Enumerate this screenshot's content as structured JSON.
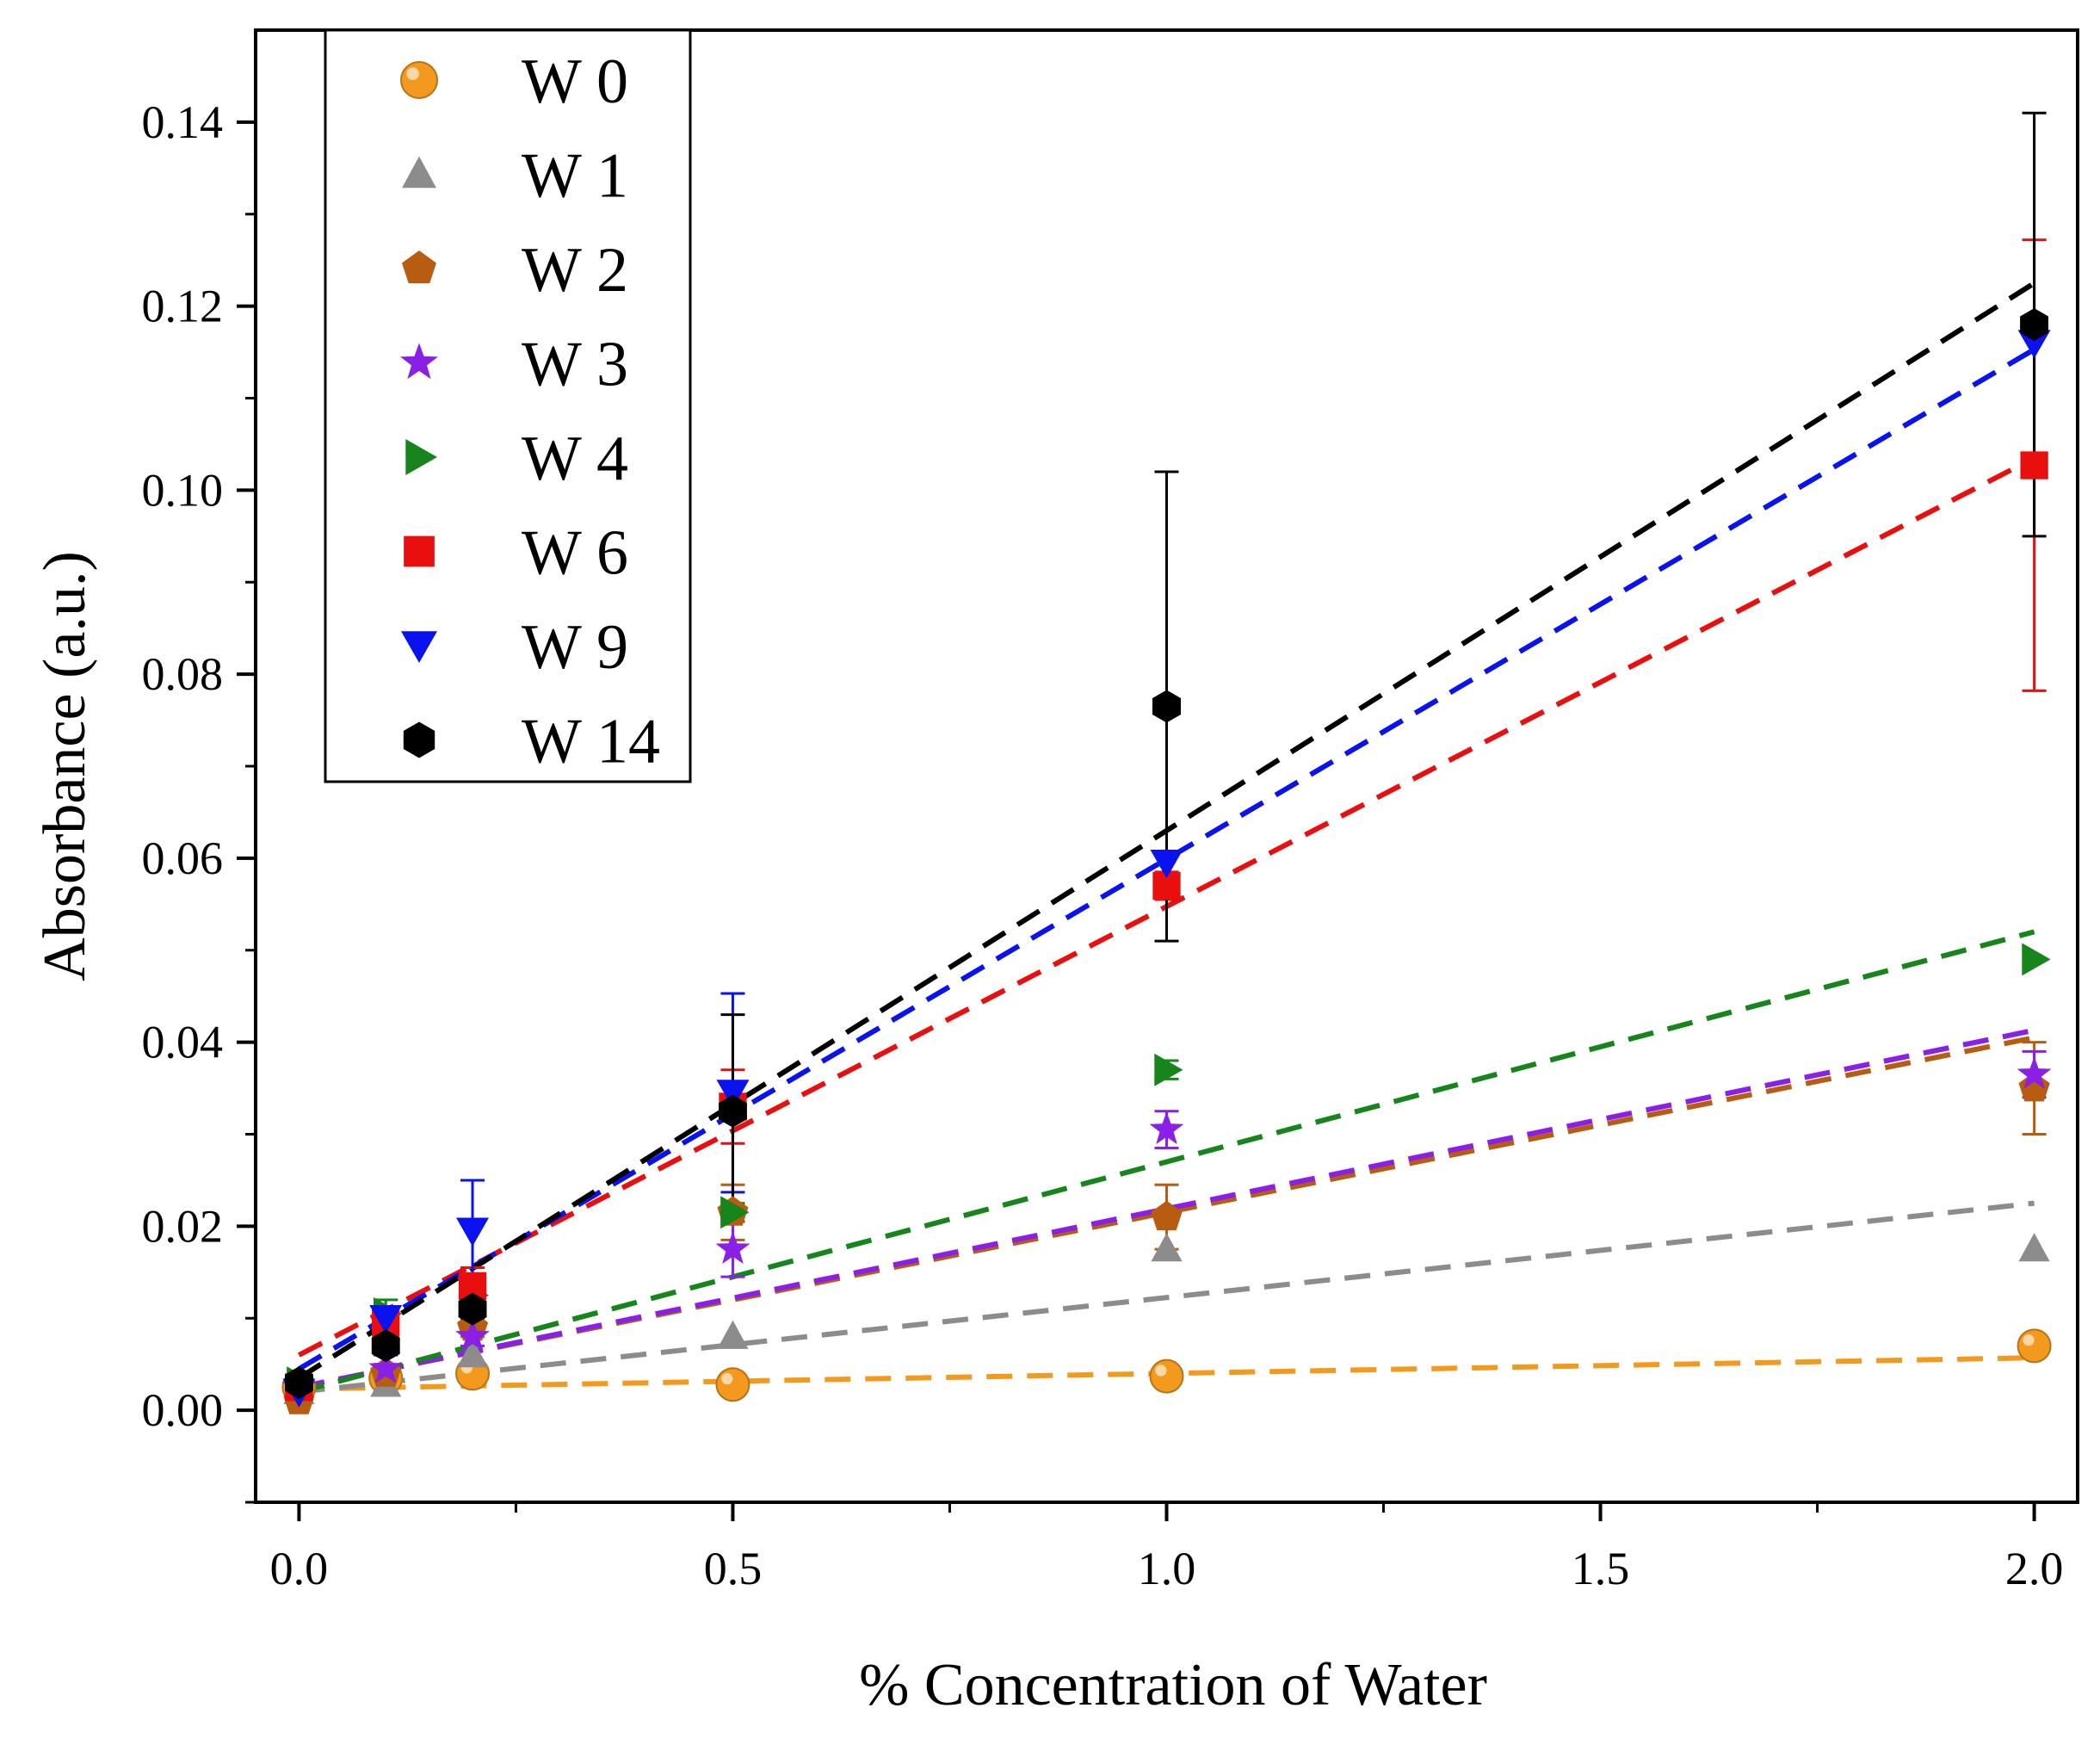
{
  "chart_data": {
    "type": "scatter",
    "title": "",
    "xlabel": "% Concentration of Water",
    "ylabel": "Absorbance (a.u.)",
    "xlim": [
      -0.05,
      2.05
    ],
    "ylim": [
      -0.01,
      0.15
    ],
    "x_ticks": [
      0.0,
      0.5,
      1.0,
      1.5,
      2.0
    ],
    "x_tick_labels": [
      "0.0",
      "0.5",
      "1.0",
      "1.5",
      "2.0"
    ],
    "y_ticks": [
      0.0,
      0.02,
      0.04,
      0.06,
      0.08,
      0.1,
      0.12,
      0.14
    ],
    "y_tick_labels": [
      "0.00",
      "0.02",
      "0.04",
      "0.06",
      "0.08",
      "0.10",
      "0.12",
      "0.14"
    ],
    "legend_position": "top-left",
    "fit_lines": "dashed linear fits",
    "series": [
      {
        "name": "W 0",
        "marker": "sphere",
        "color": "#f39a1e",
        "x": [
          0,
          0.1,
          0.2,
          0.5,
          1.0,
          2.0
        ],
        "y": [
          0.0025,
          0.0035,
          0.004,
          0.0028,
          0.0037,
          0.007
        ],
        "err": [
          0,
          0.0005,
          0.0005,
          0,
          0,
          0
        ],
        "fit": [
          0.0023,
          0.0057
        ]
      },
      {
        "name": "W 1",
        "marker": "triangle-up",
        "color": "#8c8c8c",
        "x": [
          0,
          0.1,
          0.2,
          0.5,
          1.0,
          2.0
        ],
        "y": [
          0.002,
          0.0028,
          0.006,
          0.008,
          0.0175,
          0.0175
        ],
        "err": [
          0,
          0.0005,
          0,
          0,
          0,
          0
        ],
        "fit": [
          0.002,
          0.0225
        ]
      },
      {
        "name": "W 2",
        "marker": "pentagon",
        "color": "#b85c12",
        "x": [
          0,
          0.1,
          0.2,
          0.5,
          1.0,
          2.0
        ],
        "y": [
          0.001,
          0.004,
          0.009,
          0.0215,
          0.021,
          0.035
        ],
        "err": [
          0,
          0.0006,
          0.001,
          0.003,
          0.0035,
          0.005
        ],
        "fit": [
          0.0025,
          0.0405
        ]
      },
      {
        "name": "W 3",
        "marker": "star",
        "color": "#8a1fe6",
        "x": [
          0,
          0.1,
          0.2,
          0.5,
          1.0,
          2.0
        ],
        "y": [
          0.0025,
          0.0045,
          0.008,
          0.0175,
          0.0305,
          0.0365
        ],
        "err": [
          0,
          0.0005,
          0.001,
          0.003,
          0.002,
          0.0025
        ],
        "fit": [
          0.0025,
          0.0413
        ]
      },
      {
        "name": "W 4",
        "marker": "triangle-right",
        "color": "#16851b",
        "x": [
          0,
          0.1,
          0.2,
          0.5,
          1.0,
          2.0
        ],
        "y": [
          0.003,
          0.0105,
          0.0125,
          0.0215,
          0.037,
          0.049
        ],
        "err": [
          0,
          0.0015,
          0.0015,
          0.001,
          0.001,
          0
        ],
        "fit": [
          0.002,
          0.052
        ]
      },
      {
        "name": "W 6",
        "marker": "square",
        "color": "#ea0f0f",
        "x": [
          0,
          0.1,
          0.2,
          0.5,
          1.0,
          2.0
        ],
        "y": [
          0.0025,
          0.0095,
          0.0135,
          0.033,
          0.057,
          0.1027
        ],
        "err": [
          0,
          0.001,
          0.002,
          0.004,
          0.0015,
          0.0245
        ],
        "fit": [
          0.006,
          0.1035
        ]
      },
      {
        "name": "W 9",
        "marker": "triangle-down",
        "color": "#0a12f0",
        "x": [
          0,
          0.1,
          0.2,
          0.5,
          1.0,
          2.0
        ],
        "y": [
          0.002,
          0.01,
          0.0195,
          0.0345,
          0.0595,
          0.116
        ],
        "err": [
          0,
          0.001,
          0.0055,
          0.0108,
          0,
          0
        ],
        "fit": [
          0.0045,
          0.1153
        ]
      },
      {
        "name": "W 14",
        "marker": "hexagon",
        "color": "#000000",
        "x": [
          0,
          0.1,
          0.2,
          0.5,
          1.0,
          2.0
        ],
        "y": [
          0.003,
          0.007,
          0.011,
          0.0325,
          0.0765,
          0.118
        ],
        "err": [
          0,
          0.001,
          0.001,
          0.0105,
          0.0255,
          0.023
        ],
        "fit": [
          0.0035,
          0.1225
        ]
      }
    ]
  }
}
